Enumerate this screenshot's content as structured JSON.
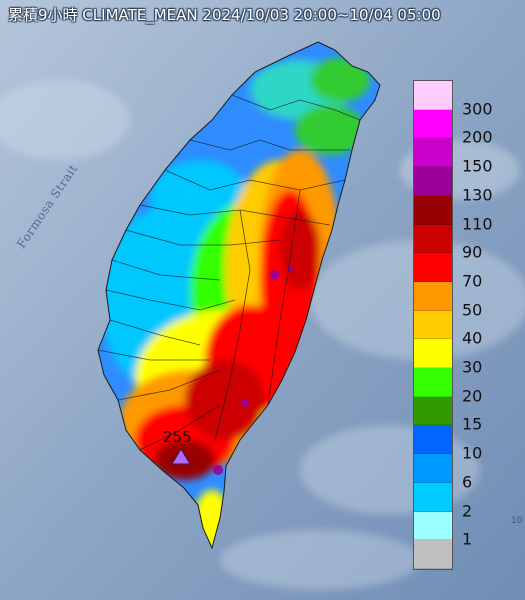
{
  "title": "累積9小時 CLIMATE_MEAN 2024/10/03 20:00~10/04 05:00",
  "sea_label": "Formosa Strait",
  "max_marker": {
    "value": "255",
    "icon": "triangle-marker-icon",
    "color": "#b06cff"
  },
  "edge_mark": "10",
  "legend": {
    "colors": [
      "#ffccff",
      "#ff00ff",
      "#cc00cc",
      "#990099",
      "#990000",
      "#cc0000",
      "#ff0000",
      "#ff9900",
      "#ffcc00",
      "#ffff00",
      "#33ff00",
      "#339900",
      "#0066ff",
      "#0099ff",
      "#00ccff",
      "#99ffff",
      "#c0c0c0"
    ],
    "labels": [
      "300",
      "200",
      "150",
      "130",
      "110",
      "90",
      "70",
      "50",
      "40",
      "30",
      "20",
      "15",
      "10",
      "6",
      "2",
      "1"
    ]
  }
}
